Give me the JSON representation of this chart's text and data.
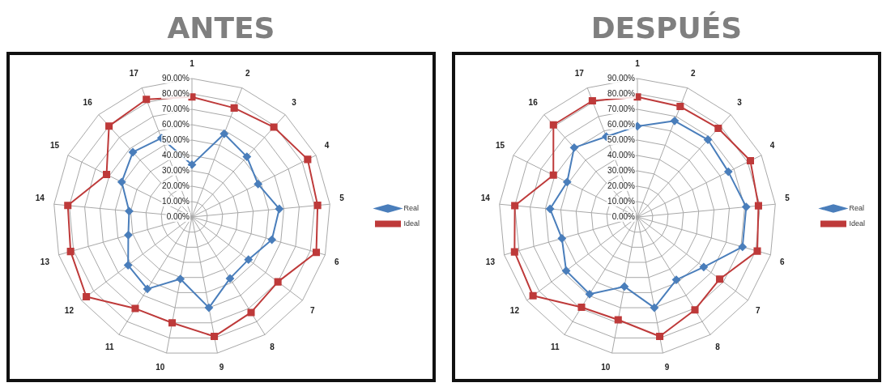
{
  "chart_data": [
    {
      "type": "radar",
      "title": "ANTES",
      "categories": [
        "1",
        "2",
        "3",
        "4",
        "5",
        "6",
        "7",
        "8",
        "9",
        "10",
        "11",
        "12",
        "13",
        "14",
        "15",
        "16",
        "17"
      ],
      "ylim": [
        0,
        90
      ],
      "yticks": [
        {
          "value": 0,
          "label": "0.00%"
        },
        {
          "value": 10,
          "label": "10.00%"
        },
        {
          "value": 20,
          "label": "20.00%"
        },
        {
          "value": 30,
          "label": "30.00%"
        },
        {
          "value": 40,
          "label": "40.00%"
        },
        {
          "value": 50,
          "label": "50.00%"
        },
        {
          "value": 60,
          "label": "60.00%"
        },
        {
          "value": 70,
          "label": "70.00%"
        },
        {
          "value": 80,
          "label": "80.00%"
        },
        {
          "value": 90,
          "label": "90.00%"
        }
      ],
      "grid": true,
      "legend": "right",
      "line_style": "solid",
      "series": [
        {
          "name": "Real",
          "color": "#4a7ebb",
          "marker": "diamond",
          "values": [
            34,
            58,
            53,
            48,
            57,
            54,
            46,
            47,
            60,
            41,
            55,
            52,
            43,
            41,
            51,
            57,
            55
          ]
        },
        {
          "name": "Ideal",
          "color": "#be3a3a",
          "marker": "square",
          "values": [
            78,
            76,
            79,
            84,
            82,
            84,
            70,
            73,
            79,
            70,
            70,
            86,
            82,
            81,
            62,
            80,
            82
          ]
        }
      ]
    },
    {
      "type": "radar",
      "title": "DESPUÉS",
      "categories": [
        "1",
        "2",
        "3",
        "4",
        "5",
        "6",
        "7",
        "8",
        "9",
        "10",
        "11",
        "12",
        "13",
        "14",
        "15",
        "16",
        "17"
      ],
      "ylim": [
        0,
        90
      ],
      "yticks": [
        {
          "value": 0,
          "label": "0.00%"
        },
        {
          "value": 10,
          "label": "10.00%"
        },
        {
          "value": 20,
          "label": "20.00%"
        },
        {
          "value": 30,
          "label": "30.00%"
        },
        {
          "value": 40,
          "label": "40.00%"
        },
        {
          "value": 50,
          "label": "50.00%"
        },
        {
          "value": 60,
          "label": "60.00%"
        },
        {
          "value": 70,
          "label": "70.00%"
        },
        {
          "value": 80,
          "label": "80.00%"
        },
        {
          "value": 90,
          "label": "90.00%"
        }
      ],
      "grid": true,
      "legend": "right",
      "line_style": "solid",
      "series": [
        {
          "name": "Real",
          "color": "#4a7ebb",
          "marker": "diamond",
          "values": [
            59,
            67,
            68,
            66,
            71,
            71,
            54,
            48,
            60,
            46,
            59,
            58,
            51,
            57,
            51,
            61,
            56
          ]
        },
        {
          "name": "Ideal",
          "color": "#be3a3a",
          "marker": "square",
          "values": [
            78,
            77,
            78,
            82,
            79,
            81,
            67,
            71,
            79,
            68,
            69,
            85,
            83,
            80,
            61,
            81,
            81
          ]
        }
      ]
    }
  ]
}
